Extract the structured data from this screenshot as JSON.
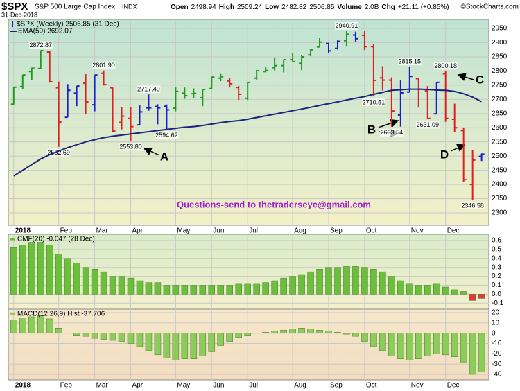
{
  "header": {
    "symbol": "$SPX",
    "name": "S&P 500 Large Cap Index",
    "exchange": "INDX",
    "date": "31-Dec-2018",
    "quote": [
      "Open",
      "2498.94",
      "High",
      "2509.24",
      "Low",
      "2482.82",
      "2506.85",
      "Volume",
      "2.0B",
      "Chg",
      "+21.11 (+0.85%)"
    ],
    "watermark": "©StockCharts.com"
  },
  "chart_data": [
    {
      "type": "ohlc",
      "xlim": [
        -0.6,
        52.8
      ],
      "xticks": [
        {
          "value": 0,
          "label": "2018"
        },
        {
          "value": 5,
          "label": "Feb"
        },
        {
          "value": 9,
          "label": "Mar"
        },
        {
          "value": 13,
          "label": "Apr"
        },
        {
          "value": 18,
          "label": "May"
        },
        {
          "value": 22,
          "label": "Jun"
        },
        {
          "value": 26,
          "label": "Jul"
        },
        {
          "value": 31,
          "label": "Aug"
        },
        {
          "value": 35,
          "label": "Sep"
        },
        {
          "value": 39,
          "label": "Oct"
        },
        {
          "value": 44,
          "label": "Nov"
        },
        {
          "value": 48,
          "label": "Dec"
        }
      ],
      "ylim": [
        2256,
        2982
      ],
      "yticks": [
        2300,
        2350,
        2400,
        2450,
        2500,
        2550,
        2600,
        2650,
        2700,
        2750,
        2800,
        2850,
        2900,
        2950
      ],
      "grid": true,
      "series": [
        {
          "name": "$SPX (Weekly) 2506.85 (31 Dec)",
          "colors": [
            "#1f9a1f",
            "#1f9a1f",
            "#1f9a1f",
            "#1f9a1f",
            "#e02020",
            "#e02020",
            "#1c1cc8",
            "#1c1cc8",
            "#e02020",
            "#1c1cc8",
            "#e02020",
            "#e02020",
            "#e02020",
            "#e02020",
            "#1c1cc8",
            "#1c1cc8",
            "#1c1cc8",
            "#1c1cc8",
            "#1f9a1f",
            "#1f9a1f",
            "#1f9a1f",
            "#1f9a1f",
            "#1f9a1f",
            "#1f9a1f",
            "#e02020",
            "#e02020",
            "#1f9a1f",
            "#1f9a1f",
            "#1f9a1f",
            "#1f9a1f",
            "#1f9a1f",
            "#1f9a1f",
            "#1f9a1f",
            "#1f9a1f",
            "#1f9a1f",
            "#1c1cc8",
            "#1c1cc8",
            "#1f9a1f",
            "#1c1cc8",
            "#e02020",
            "#e02020",
            "#e02020",
            "#e02020",
            "#1c1cc8",
            "#1c1cc8",
            "#e02020",
            "#e02020",
            "#1c1cc8",
            "#e02020",
            "#e02020",
            "#e02020",
            "#e02020",
            "#1c1cc8"
          ],
          "open": [
            2683,
            2745,
            2798,
            2809,
            2867,
            2741,
            2637,
            2722,
            2757,
            2681,
            2792,
            2741,
            2619,
            2633,
            2610,
            2670,
            2675,
            2676,
            2669,
            2722,
            2720,
            2706,
            2738,
            2775,
            2765,
            2742,
            2704,
            2775,
            2798,
            2812,
            2819,
            2840,
            2827,
            2857,
            2885,
            2897,
            2880,
            2907,
            2927,
            2926,
            2886,
            2776,
            2768,
            2645,
            2726,
            2773,
            2730,
            2649,
            2790,
            2630,
            2590,
            2400,
            2498.94
          ],
          "high": [
            2743,
            2787,
            2812,
            2872.87,
            2870,
            2763,
            2754,
            2747,
            2789,
            2786,
            2801.9,
            2742,
            2673,
            2672,
            2680,
            2717.49,
            2683,
            2682,
            2742,
            2742,
            2739,
            2737,
            2779,
            2790,
            2774,
            2747,
            2760,
            2804,
            2816,
            2848,
            2841,
            2863,
            2855,
            2877,
            2916,
            2900,
            2908,
            2940.91,
            2939,
            2940,
            2894,
            2817,
            2778,
            2767,
            2815.15,
            2776,
            2747,
            2760,
            2800.18,
            2685,
            2601,
            2520,
            2509.24
          ],
          "low": [
            2682,
            2737,
            2768,
            2808,
            2759,
            2532.69,
            2637,
            2676,
            2647,
            2658,
            2749,
            2586,
            2594,
            2553.8,
            2610,
            2660,
            2612,
            2594.62,
            2658,
            2702,
            2704,
            2676,
            2735,
            2764,
            2742,
            2698,
            2698,
            2770,
            2795,
            2802,
            2795,
            2831,
            2803,
            2852,
            2883,
            2864,
            2876,
            2886,
            2904,
            2874,
            2710.51,
            2731,
            2603.54,
            2604,
            2725,
            2671,
            2631.09,
            2649,
            2621,
            2584,
            2409,
            2346.58,
            2482.82
          ],
          "close": [
            2743,
            2786,
            2810,
            2872,
            2762,
            2620,
            2732,
            2747,
            2691,
            2786,
            2752,
            2588,
            2641,
            2604,
            2656,
            2670,
            2670,
            2663,
            2728,
            2713,
            2721,
            2735,
            2779,
            2780,
            2755,
            2718,
            2760,
            2801,
            2802,
            2819,
            2840,
            2833,
            2850,
            2875,
            2902,
            2871,
            2905,
            2930,
            2914,
            2886,
            2767,
            2768,
            2659,
            2723,
            2781,
            2736,
            2633,
            2760,
            2633,
            2600,
            2417,
            2486,
            2506.85
          ],
          "high_labels": [
            null,
            null,
            null,
            "2872.87",
            null,
            null,
            null,
            null,
            null,
            null,
            "2801.90",
            null,
            null,
            null,
            null,
            "2717.49",
            null,
            null,
            null,
            null,
            null,
            null,
            null,
            null,
            null,
            null,
            null,
            null,
            null,
            null,
            null,
            null,
            null,
            null,
            null,
            null,
            null,
            "2940.91",
            null,
            null,
            null,
            null,
            null,
            null,
            "2815.15",
            null,
            null,
            null,
            "2800.18",
            null,
            null,
            null,
            null
          ],
          "low_labels": [
            null,
            null,
            null,
            null,
            null,
            "2532.69",
            null,
            null,
            null,
            null,
            null,
            null,
            null,
            "2553.80",
            null,
            null,
            null,
            "2594.62",
            null,
            null,
            null,
            null,
            null,
            null,
            null,
            null,
            null,
            null,
            null,
            null,
            null,
            null,
            null,
            null,
            null,
            null,
            null,
            null,
            null,
            null,
            "2710.51",
            null,
            "2603.54",
            null,
            null,
            null,
            "2631.09",
            null,
            null,
            null,
            null,
            "2346.58",
            null
          ]
        },
        {
          "name": "EMA(50) 2692.07",
          "color": "#1a237e",
          "values": [
            2430,
            2450,
            2470,
            2490,
            2505,
            2518,
            2530,
            2540,
            2550,
            2558,
            2565,
            2570,
            2574,
            2578,
            2582,
            2586,
            2590,
            2594,
            2598,
            2602,
            2604,
            2608,
            2613,
            2618,
            2622,
            2625,
            2630,
            2636,
            2642,
            2648,
            2654,
            2660,
            2666,
            2672,
            2679,
            2685,
            2691,
            2698,
            2704,
            2710,
            2718,
            2725,
            2732,
            2734,
            2736,
            2736,
            2735,
            2733,
            2732,
            2728,
            2720,
            2708,
            2692.07
          ]
        }
      ],
      "annotations": [
        "Questions-send to thetraderseye@gmail.com",
        "A",
        "B",
        "C",
        "D"
      ]
    },
    {
      "type": "bar",
      "title": "CMF(20) -0.047 (28 Dec)",
      "color": "#6cbf3c",
      "negative_color": "#e03a3a",
      "xlim": [
        -0.6,
        52.8
      ],
      "ylim": [
        -0.16,
        0.67
      ],
      "yticks": [
        -0.1,
        {
          "value": 0,
          "label": "0.0"
        },
        0.1,
        0.2,
        0.3,
        0.4,
        0.5,
        0.6
      ],
      "grid": true,
      "values": [
        0.52,
        0.55,
        0.58,
        0.58,
        0.55,
        0.45,
        0.4,
        0.35,
        0.3,
        0.28,
        0.25,
        0.2,
        0.2,
        0.18,
        0.15,
        0.13,
        0.13,
        0.1,
        0.1,
        0.1,
        0.1,
        0.1,
        0.1,
        0.1,
        0.1,
        0.12,
        0.12,
        0.12,
        0.13,
        0.15,
        0.18,
        0.2,
        0.22,
        0.25,
        0.28,
        0.3,
        0.3,
        0.31,
        0.31,
        0.3,
        0.28,
        0.25,
        0.2,
        0.15,
        0.12,
        0.1,
        0.1,
        0.12,
        0.08,
        0.05,
        0.03,
        -0.07,
        -0.047
      ]
    },
    {
      "type": "bar",
      "title": "MACD(12,26,9) Hist -37.706",
      "color": "#8ccc5a",
      "negative_color": "#8ccc5a",
      "xlim": [
        -0.6,
        52.8
      ],
      "ylim": [
        -45.4,
        23.4
      ],
      "yticks": [
        -40,
        -30,
        -20,
        -10,
        0,
        10,
        20
      ],
      "grid": true,
      "values": [
        13,
        15,
        16,
        17,
        14,
        5,
        0,
        -2,
        -3,
        -5,
        -6,
        -7,
        -8,
        -10,
        -13,
        -17,
        -21,
        -24,
        -26,
        -25,
        -25,
        -22,
        -18,
        -12,
        -8,
        -4,
        -2,
        0,
        1,
        2,
        3,
        4,
        5,
        4,
        3,
        2,
        1,
        -1,
        -3,
        -8,
        -13,
        -17,
        -22,
        -25,
        -26,
        -25,
        -22,
        -20,
        -21,
        -23,
        -28,
        -40,
        -37.706
      ]
    }
  ]
}
